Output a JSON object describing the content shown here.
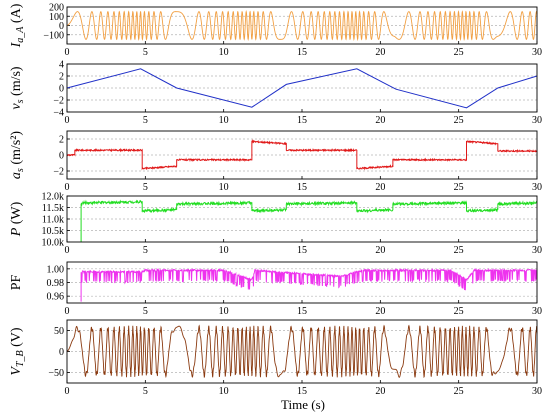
{
  "chart_data": {
    "type": "line",
    "xlabel": "Time (s)",
    "xlim": [
      0,
      30
    ],
    "xticks": [
      0,
      5,
      10,
      15,
      20,
      25,
      30
    ],
    "xtick_labels": [
      "0",
      "5",
      "10",
      "15",
      "20",
      "25",
      "30"
    ],
    "grid": "horizontal dashed",
    "panels": [
      {
        "key": "ia",
        "ylabel_main": "I",
        "ylabel_sub": "a_A",
        "ylabel_unit": " (A)",
        "ylim": [
          -200,
          200
        ],
        "yticks": [
          -100,
          0,
          100,
          200
        ],
        "ytick_labels": [
          "−100",
          "0",
          "100",
          "200"
        ],
        "color": "#f2a043",
        "description": "phase current, amplitude ~150 A, frequency follows speed",
        "amplitude": 150
      },
      {
        "key": "vs",
        "ylabel_main": "v",
        "ylabel_sub": "s",
        "ylabel_unit": " (m/s)",
        "ylim": [
          -4,
          4
        ],
        "yticks": [
          -4,
          -2,
          0,
          2,
          4
        ],
        "ytick_labels": [
          "−4",
          "−2",
          "0",
          "2",
          "4"
        ],
        "color": "#2030c8",
        "x": [
          0,
          4.7,
          7.0,
          11.8,
          14.0,
          18.5,
          21.0,
          25.5,
          27.5,
          30.0
        ],
        "y": [
          0.0,
          3.2,
          0.0,
          -3.2,
          0.6,
          3.2,
          -0.2,
          -3.3,
          0.0,
          2.0
        ]
      },
      {
        "key": "as",
        "ylabel_main": "a",
        "ylabel_sub": "s",
        "ylabel_unit": " (m/s²)",
        "ylim": [
          -3,
          3
        ],
        "yticks": [
          -2,
          0,
          2
        ],
        "ytick_labels": [
          "−2",
          "0",
          "2"
        ],
        "color": "#e01818",
        "x": [
          0,
          0.5,
          0.5,
          4.8,
          4.8,
          7.0,
          7.0,
          11.8,
          11.8,
          14.0,
          14.0,
          18.5,
          18.5,
          20.8,
          20.8,
          25.5,
          25.5,
          27.5,
          27.5,
          30.0
        ],
        "y": [
          0.0,
          0.0,
          0.6,
          0.6,
          -1.7,
          -1.4,
          -0.6,
          -0.6,
          1.7,
          1.4,
          0.6,
          0.6,
          -1.7,
          -1.4,
          -0.6,
          -0.6,
          1.7,
          1.4,
          0.5,
          0.5
        ]
      },
      {
        "key": "p",
        "ylabel_main": "P",
        "ylabel_sub": "",
        "ylabel_unit": " (W)",
        "ylim": [
          10000,
          12000
        ],
        "yticks": [
          10000,
          10500,
          11000,
          11500,
          12000
        ],
        "ytick_labels": [
          "10.0k",
          "10.5k",
          "11.0k",
          "11.5k",
          "12.0k"
        ],
        "color": "#22dd22",
        "x": [
          0.9,
          0.9,
          1.0,
          4.8,
          4.8,
          7.0,
          7.0,
          11.8,
          11.8,
          14.0,
          14.0,
          18.5,
          18.5,
          20.8,
          20.8,
          25.5,
          25.5,
          27.5,
          27.5,
          30.0
        ],
        "y": [
          10000,
          11650,
          11700,
          11750,
          11350,
          11400,
          11650,
          11700,
          11350,
          11400,
          11650,
          11700,
          11350,
          11400,
          11650,
          11700,
          11350,
          11400,
          11650,
          11700
        ]
      },
      {
        "key": "pf",
        "ylabel_main": "PF",
        "ylabel_sub": "",
        "ylabel_unit": "",
        "ylim": [
          0.95,
          1.01
        ],
        "yticks": [
          0.96,
          0.98,
          1.0
        ],
        "ytick_labels": [
          "0.96",
          "0.98",
          "1.00"
        ],
        "color": "#ee33ee",
        "x": [
          0.9,
          0.9,
          1.0,
          4.8,
          5.0,
          10.0,
          11.8,
          12.0,
          17.5,
          18.5,
          19.0,
          24.5,
          25.5,
          26.0,
          30.0
        ],
        "y": [
          0.952,
          0.995,
          0.997,
          0.997,
          0.999,
          0.999,
          0.985,
          0.999,
          0.99,
          0.997,
          0.999,
          0.999,
          0.985,
          0.999,
          0.999
        ]
      },
      {
        "key": "vt",
        "ylabel_main": "V",
        "ylabel_sub": "T_B",
        "ylabel_unit": " (V)",
        "ylim": [
          -75,
          75
        ],
        "yticks": [
          -50,
          0,
          50
        ],
        "ytick_labels": [
          "−50",
          "0",
          "50"
        ],
        "color": "#8a3a10",
        "description": "terminal voltage, amplitude ~55 V, frequency follows speed",
        "amplitude": 55
      }
    ]
  }
}
